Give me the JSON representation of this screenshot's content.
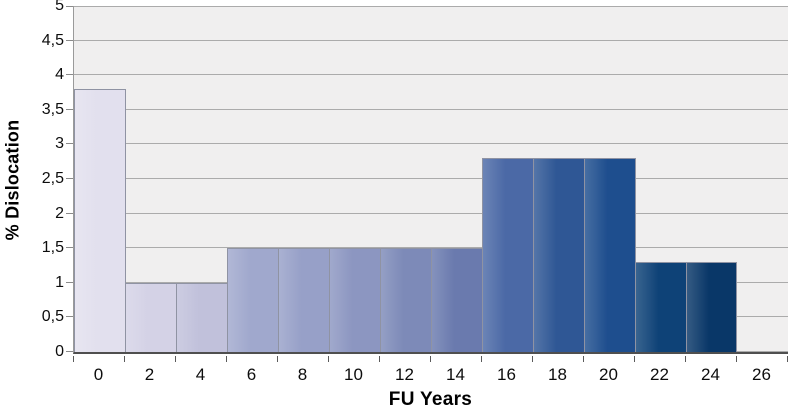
{
  "figure": {
    "background_color": "#ffffff"
  },
  "chart_data": {
    "type": "bar",
    "title": "",
    "xlabel": "FU Years",
    "ylabel": "% Dislocation",
    "categories": [
      "0",
      "2",
      "4",
      "6",
      "8",
      "10",
      "12",
      "14",
      "16",
      "18",
      "20",
      "22",
      "24",
      "26"
    ],
    "values": [
      3.8,
      1.0,
      1.0,
      1.5,
      1.5,
      1.5,
      1.5,
      1.5,
      2.8,
      2.8,
      2.8,
      1.3,
      1.3
    ],
    "bar_colors": [
      "#e2e0ee",
      "#d4d2e6",
      "#c1c1db",
      "#a0a8cd",
      "#97a0c8",
      "#8c96c1",
      "#7d8ab8",
      "#6a7aae",
      "#4b69a6",
      "#2f5795",
      "#1e4e8e",
      "#0e4277",
      "#093768"
    ],
    "ylim": [
      0,
      5
    ],
    "yticks": [
      {
        "value": 0,
        "label": "0"
      },
      {
        "value": 0.5,
        "label": "0,5"
      },
      {
        "value": 1,
        "label": "1"
      },
      {
        "value": 1.5,
        "label": "1,5"
      },
      {
        "value": 2,
        "label": "2"
      },
      {
        "value": 2.5,
        "label": "2,5"
      },
      {
        "value": 3,
        "label": "3"
      },
      {
        "value": 3.5,
        "label": "3,5"
      },
      {
        "value": 4,
        "label": "4"
      },
      {
        "value": 4.5,
        "label": "4,5"
      },
      {
        "value": 5,
        "label": "5"
      }
    ],
    "decimal_separator": ",",
    "grid": "horizontal",
    "legend_position": "none",
    "plot_background": "#f0efef",
    "gridline_color": "#ababab",
    "axis_line_color": "#4f4f4f",
    "bar_border_color": "#8f93a3"
  }
}
